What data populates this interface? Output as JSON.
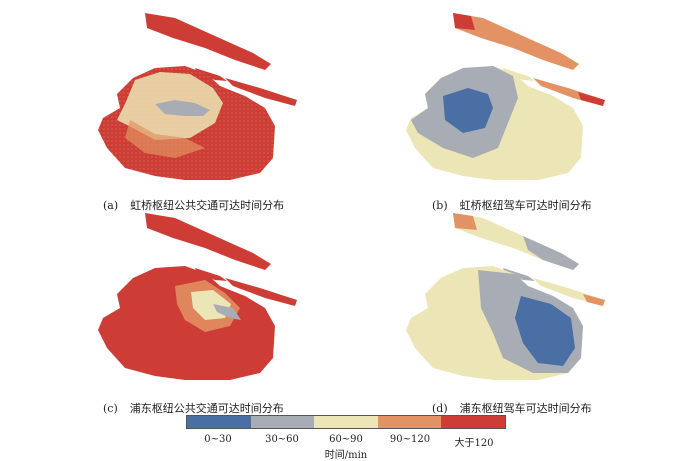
{
  "panels": [
    {
      "id": "a",
      "label": "(a)",
      "caption": "虹桥枢纽公共交通可达时间分布",
      "pattern": "hq-transit"
    },
    {
      "id": "b",
      "label": "(b)",
      "caption": "虹桥枢纽驾车可达时间分布",
      "pattern": "hq-drive"
    },
    {
      "id": "c",
      "label": "(c)",
      "caption": "浦东枢纽公共交通可达时间分布",
      "pattern": "pd-transit"
    },
    {
      "id": "d",
      "label": "(d)",
      "caption": "浦东枢纽驾车可达时间分布",
      "pattern": "pd-drive"
    }
  ],
  "legend": {
    "title": "时间/min",
    "categories": [
      {
        "label": "0~30",
        "color": "#4a6fa5"
      },
      {
        "label": "30~60",
        "color": "#a8adb5"
      },
      {
        "label": "60~90",
        "color": "#ece6b6"
      },
      {
        "label": "90~120",
        "color": "#e39363"
      },
      {
        "label": "大于120",
        "color": "#cd3d36"
      }
    ]
  }
}
